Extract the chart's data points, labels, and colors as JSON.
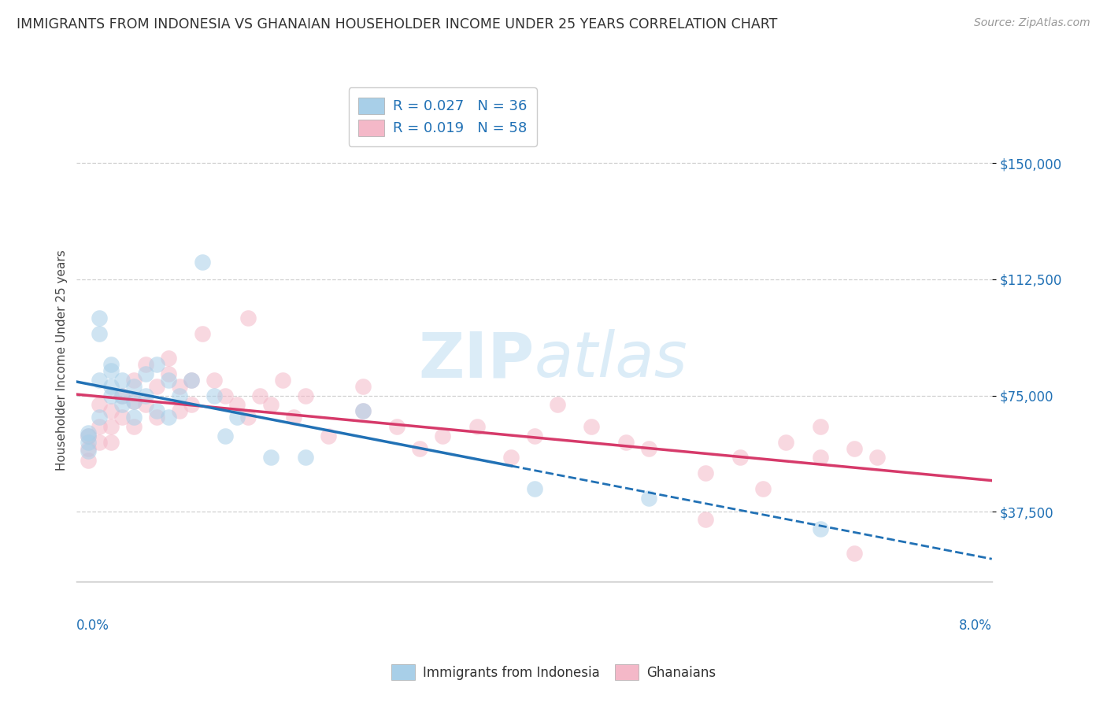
{
  "title": "IMMIGRANTS FROM INDONESIA VS GHANAIAN HOUSEHOLDER INCOME UNDER 25 YEARS CORRELATION CHART",
  "source": "Source: ZipAtlas.com",
  "ylabel": "Householder Income Under 25 years",
  "xmin": 0.0,
  "xmax": 0.08,
  "ymin": 15000,
  "ymax": 158000,
  "yticks": [
    37500,
    75000,
    112500,
    150000
  ],
  "ytick_labels": [
    "$37,500",
    "$75,000",
    "$112,500",
    "$150,000"
  ],
  "legend1_R": "0.027",
  "legend1_N": "36",
  "legend2_R": "0.019",
  "legend2_N": "58",
  "color_blue": "#a8cfe8",
  "color_pink": "#f4b8c8",
  "color_blue_line": "#2171b5",
  "color_blue_line_dark": "#2171b5",
  "color_pink_line": "#d63a6a",
  "watermark_color": "#cde4f5",
  "indonesia_x": [
    0.001,
    0.001,
    0.001,
    0.001,
    0.002,
    0.002,
    0.002,
    0.002,
    0.003,
    0.003,
    0.003,
    0.003,
    0.004,
    0.004,
    0.004,
    0.005,
    0.005,
    0.005,
    0.006,
    0.006,
    0.007,
    0.007,
    0.008,
    0.008,
    0.009,
    0.01,
    0.011,
    0.012,
    0.013,
    0.014,
    0.017,
    0.02,
    0.025,
    0.04,
    0.05,
    0.065
  ],
  "indonesia_y": [
    63000,
    60000,
    57000,
    62000,
    100000,
    68000,
    95000,
    80000,
    75000,
    83000,
    85000,
    78000,
    80000,
    72000,
    75000,
    78000,
    68000,
    73000,
    82000,
    75000,
    85000,
    70000,
    80000,
    68000,
    75000,
    80000,
    118000,
    75000,
    62000,
    68000,
    55000,
    55000,
    70000,
    45000,
    42000,
    32000
  ],
  "ghanaian_x": [
    0.001,
    0.001,
    0.001,
    0.002,
    0.002,
    0.002,
    0.003,
    0.003,
    0.003,
    0.004,
    0.004,
    0.005,
    0.005,
    0.005,
    0.006,
    0.006,
    0.007,
    0.007,
    0.008,
    0.008,
    0.009,
    0.009,
    0.01,
    0.01,
    0.011,
    0.012,
    0.013,
    0.014,
    0.015,
    0.016,
    0.017,
    0.018,
    0.019,
    0.02,
    0.022,
    0.025,
    0.028,
    0.03,
    0.032,
    0.035,
    0.038,
    0.042,
    0.045,
    0.048,
    0.05,
    0.055,
    0.058,
    0.06,
    0.062,
    0.065,
    0.068,
    0.07,
    0.015,
    0.025,
    0.04,
    0.055,
    0.068,
    0.065
  ],
  "ghanaian_y": [
    62000,
    58000,
    54000,
    65000,
    72000,
    60000,
    70000,
    65000,
    60000,
    75000,
    68000,
    80000,
    73000,
    65000,
    85000,
    72000,
    78000,
    68000,
    87000,
    82000,
    78000,
    70000,
    80000,
    72000,
    95000,
    80000,
    75000,
    72000,
    68000,
    75000,
    72000,
    80000,
    68000,
    75000,
    62000,
    70000,
    65000,
    58000,
    62000,
    65000,
    55000,
    72000,
    65000,
    60000,
    58000,
    50000,
    55000,
    45000,
    60000,
    65000,
    58000,
    55000,
    100000,
    78000,
    62000,
    35000,
    24000,
    55000
  ]
}
